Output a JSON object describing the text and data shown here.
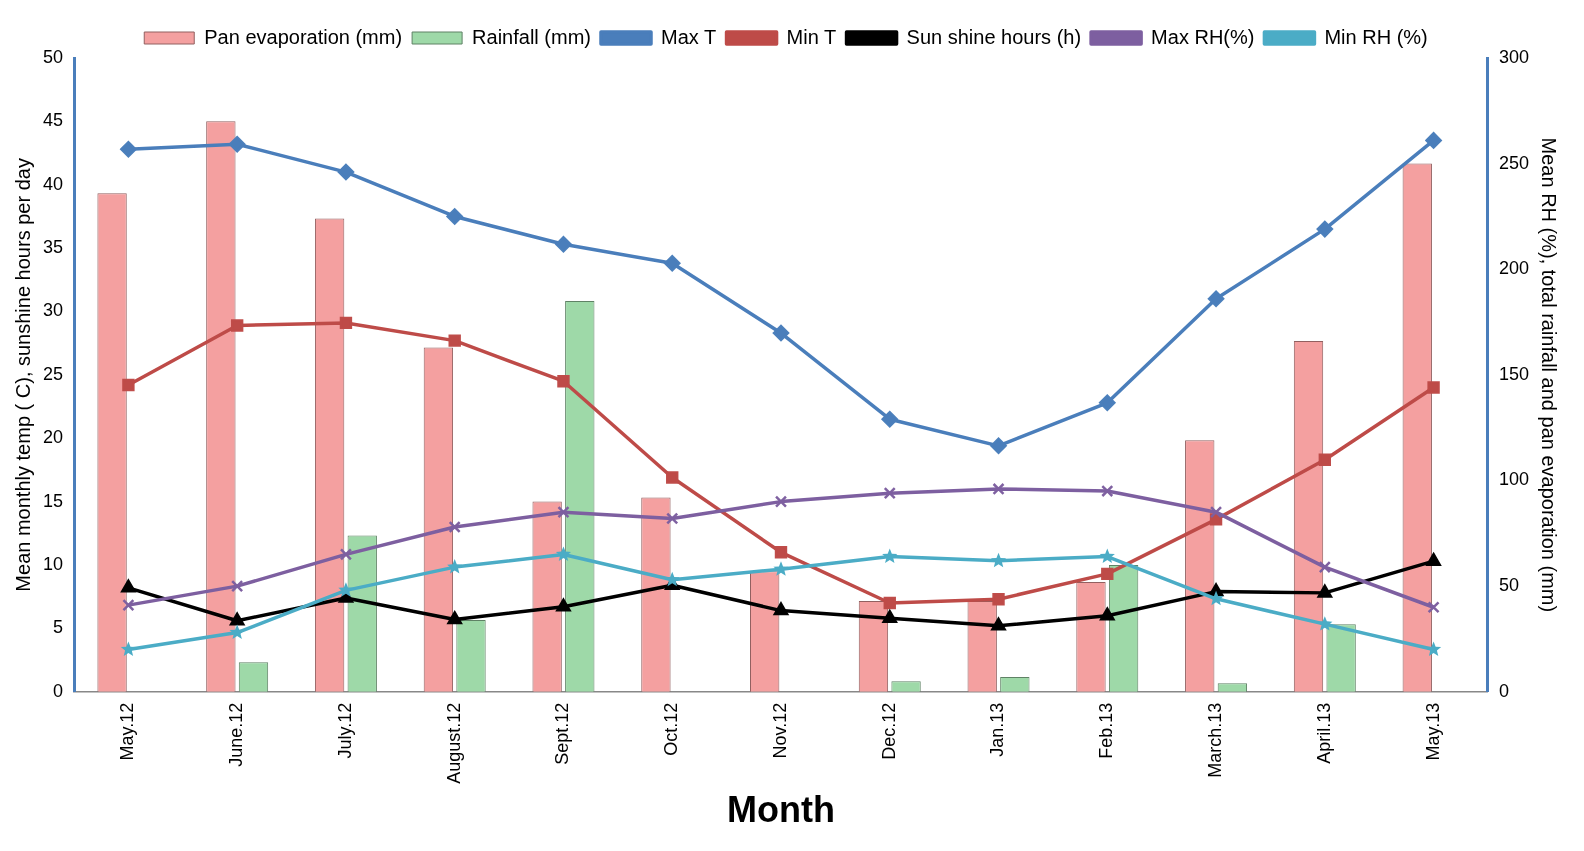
{
  "chart_data": {
    "type": "bar",
    "xlabel": "Month",
    "ylabel": "Mean monthly temp ( C), sunshine hours per day",
    "y2label": "Mean RH (%), total rainfall and pan evaporation (mm)",
    "categories": [
      "May.12",
      "June.12",
      "July.12",
      "August.12",
      "Sept.12",
      "Oct.12",
      "Nov.12",
      "Dec.12",
      "Jan.13",
      "Feb.13",
      "March.13",
      "April.13",
      "May.13"
    ],
    "series": [
      {
        "name": "Pan evaporation (mm)",
        "type": "bar",
        "axis": "y2",
        "color": "#f4a0a0",
        "values": [
          236,
          270,
          224,
          163,
          90,
          92,
          57,
          43,
          43,
          52,
          119,
          166,
          250
        ]
      },
      {
        "name": "Rainfall (mm)",
        "type": "bar",
        "axis": "y2",
        "color": "#9ed9a8",
        "values": [
          0,
          14,
          74,
          34,
          185,
          0,
          0,
          5,
          7,
          60,
          4,
          32,
          0
        ]
      },
      {
        "name": "Max T",
        "type": "line",
        "color": "#4a7ebb",
        "marker": "diamond",
        "values": [
          42.8,
          43.2,
          41,
          37.5,
          35.3,
          33.8,
          28.3,
          21.5,
          19.4,
          22.8,
          31,
          36.5,
          43.5
        ]
      },
      {
        "name": "Min T",
        "type": "line",
        "color": "#be4b48",
        "marker": "square",
        "values": [
          24.2,
          28.9,
          29.1,
          27.7,
          24.5,
          16.9,
          11,
          7,
          7.3,
          9.3,
          13.6,
          18.3,
          24
        ]
      },
      {
        "name": "Sun shine hours (h)",
        "type": "line",
        "color": "#000000",
        "marker": "triangle",
        "values": [
          8.2,
          5.6,
          7.4,
          5.7,
          6.7,
          8.4,
          6.4,
          5.8,
          5.2,
          6,
          7.9,
          7.8,
          10.3
        ]
      },
      {
        "name": "Max RH(%)",
        "type": "line",
        "axis": "y2",
        "color": "#7d5fa0",
        "marker": "cross",
        "values": [
          41,
          50,
          65,
          78,
          85,
          82,
          90,
          94,
          96,
          95,
          85,
          59,
          40
        ]
      },
      {
        "name": "Min RH (%)",
        "type": "line",
        "axis": "y2",
        "color": "#4bacc6",
        "marker": "star",
        "values": [
          20,
          28,
          48,
          59,
          65,
          53,
          58,
          64,
          62,
          64,
          44,
          32,
          20
        ]
      }
    ],
    "ylim": [
      0,
      50
    ],
    "yticks": [
      0,
      5,
      10,
      15,
      20,
      25,
      30,
      35,
      40,
      45,
      50
    ],
    "y2lim": [
      0,
      300
    ],
    "y2ticks": [
      0,
      50,
      100,
      150,
      200,
      250,
      300
    ],
    "grid": false,
    "legend": "top"
  }
}
